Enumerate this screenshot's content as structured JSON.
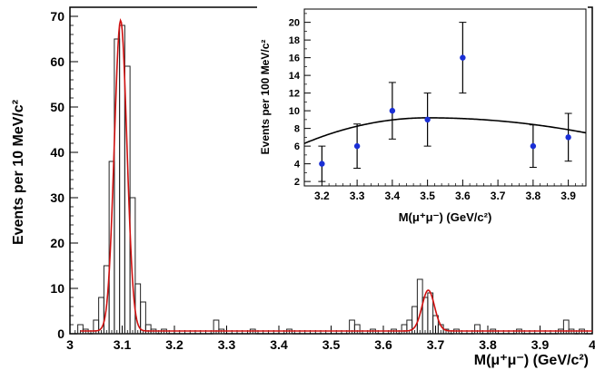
{
  "chart_data": [
    {
      "type": "histogram",
      "xlabel": "M(μ⁺μ⁻) (GeV/c²)",
      "ylabel": "Events per 10 MeV/c²",
      "xlim": [
        3.0,
        4.0
      ],
      "ylim": [
        0,
        72
      ],
      "x_ticks": [
        "3",
        "3.1",
        "3.2",
        "3.3",
        "3.4",
        "3.5",
        "3.6",
        "3.7",
        "3.8",
        "3.9",
        "4"
      ],
      "y_ticks": [
        "0",
        "10",
        "20",
        "30",
        "40",
        "50",
        "60",
        "70"
      ],
      "bin_width": 0.01,
      "bins": [
        {
          "x": 3.02,
          "y": 2
        },
        {
          "x": 3.03,
          "y": 1
        },
        {
          "x": 3.04,
          "y": 0
        },
        {
          "x": 3.05,
          "y": 3
        },
        {
          "x": 3.06,
          "y": 8
        },
        {
          "x": 3.07,
          "y": 15
        },
        {
          "x": 3.08,
          "y": 38
        },
        {
          "x": 3.09,
          "y": 65
        },
        {
          "x": 3.1,
          "y": 68
        },
        {
          "x": 3.11,
          "y": 59
        },
        {
          "x": 3.12,
          "y": 30
        },
        {
          "x": 3.13,
          "y": 11
        },
        {
          "x": 3.14,
          "y": 7
        },
        {
          "x": 3.15,
          "y": 2
        },
        {
          "x": 3.16,
          "y": 1
        },
        {
          "x": 3.18,
          "y": 1
        },
        {
          "x": 3.28,
          "y": 3
        },
        {
          "x": 3.29,
          "y": 1
        },
        {
          "x": 3.35,
          "y": 1
        },
        {
          "x": 3.42,
          "y": 1
        },
        {
          "x": 3.54,
          "y": 3
        },
        {
          "x": 3.55,
          "y": 2
        },
        {
          "x": 3.58,
          "y": 1
        },
        {
          "x": 3.62,
          "y": 1
        },
        {
          "x": 3.64,
          "y": 2
        },
        {
          "x": 3.65,
          "y": 3
        },
        {
          "x": 3.66,
          "y": 6
        },
        {
          "x": 3.67,
          "y": 12
        },
        {
          "x": 3.68,
          "y": 8
        },
        {
          "x": 3.69,
          "y": 9
        },
        {
          "x": 3.7,
          "y": 4
        },
        {
          "x": 3.71,
          "y": 2
        },
        {
          "x": 3.72,
          "y": 1
        },
        {
          "x": 3.74,
          "y": 1
        },
        {
          "x": 3.78,
          "y": 2
        },
        {
          "x": 3.81,
          "y": 1
        },
        {
          "x": 3.86,
          "y": 1
        },
        {
          "x": 3.94,
          "y": 1
        },
        {
          "x": 3.95,
          "y": 3
        },
        {
          "x": 3.96,
          "y": 1
        },
        {
          "x": 3.98,
          "y": 1
        }
      ],
      "fit": {
        "color": "#d01010",
        "background": 0.6,
        "peaks": [
          {
            "mean": 3.097,
            "amplitude": 68.5,
            "sigma": 0.012
          },
          {
            "mean": 3.686,
            "amplitude": 9.0,
            "sigma": 0.012
          }
        ]
      }
    },
    {
      "type": "scatter",
      "xlabel": "M(μ⁺μ⁻) (GeV/c²)",
      "ylabel": "Events per 100 MeV/c²",
      "xlim": [
        3.15,
        3.95
      ],
      "ylim": [
        1.5,
        21.5
      ],
      "x_ticks": [
        "3.2",
        "3.3",
        "3.4",
        "3.5",
        "3.6",
        "3.7",
        "3.8",
        "3.9"
      ],
      "y_ticks": [
        "2",
        "4",
        "6",
        "8",
        "10",
        "12",
        "14",
        "16",
        "18",
        "20"
      ],
      "marker_color": "#1a2fd6",
      "points": [
        {
          "x": 3.2,
          "y": 4,
          "err": 2
        },
        {
          "x": 3.3,
          "y": 6,
          "err": 2.5
        },
        {
          "x": 3.4,
          "y": 10,
          "err": 3.2
        },
        {
          "x": 3.5,
          "y": 9,
          "err": 3
        },
        {
          "x": 3.6,
          "y": 16,
          "err": 4
        },
        {
          "x": 3.8,
          "y": 6,
          "err": 2.4
        },
        {
          "x": 3.9,
          "y": 7,
          "err": 2.7
        }
      ],
      "curve": {
        "color": "#000000",
        "peak_x": 3.5,
        "peak_y": 9.2,
        "left_y": 6.3,
        "right_y": 7.5
      }
    }
  ]
}
